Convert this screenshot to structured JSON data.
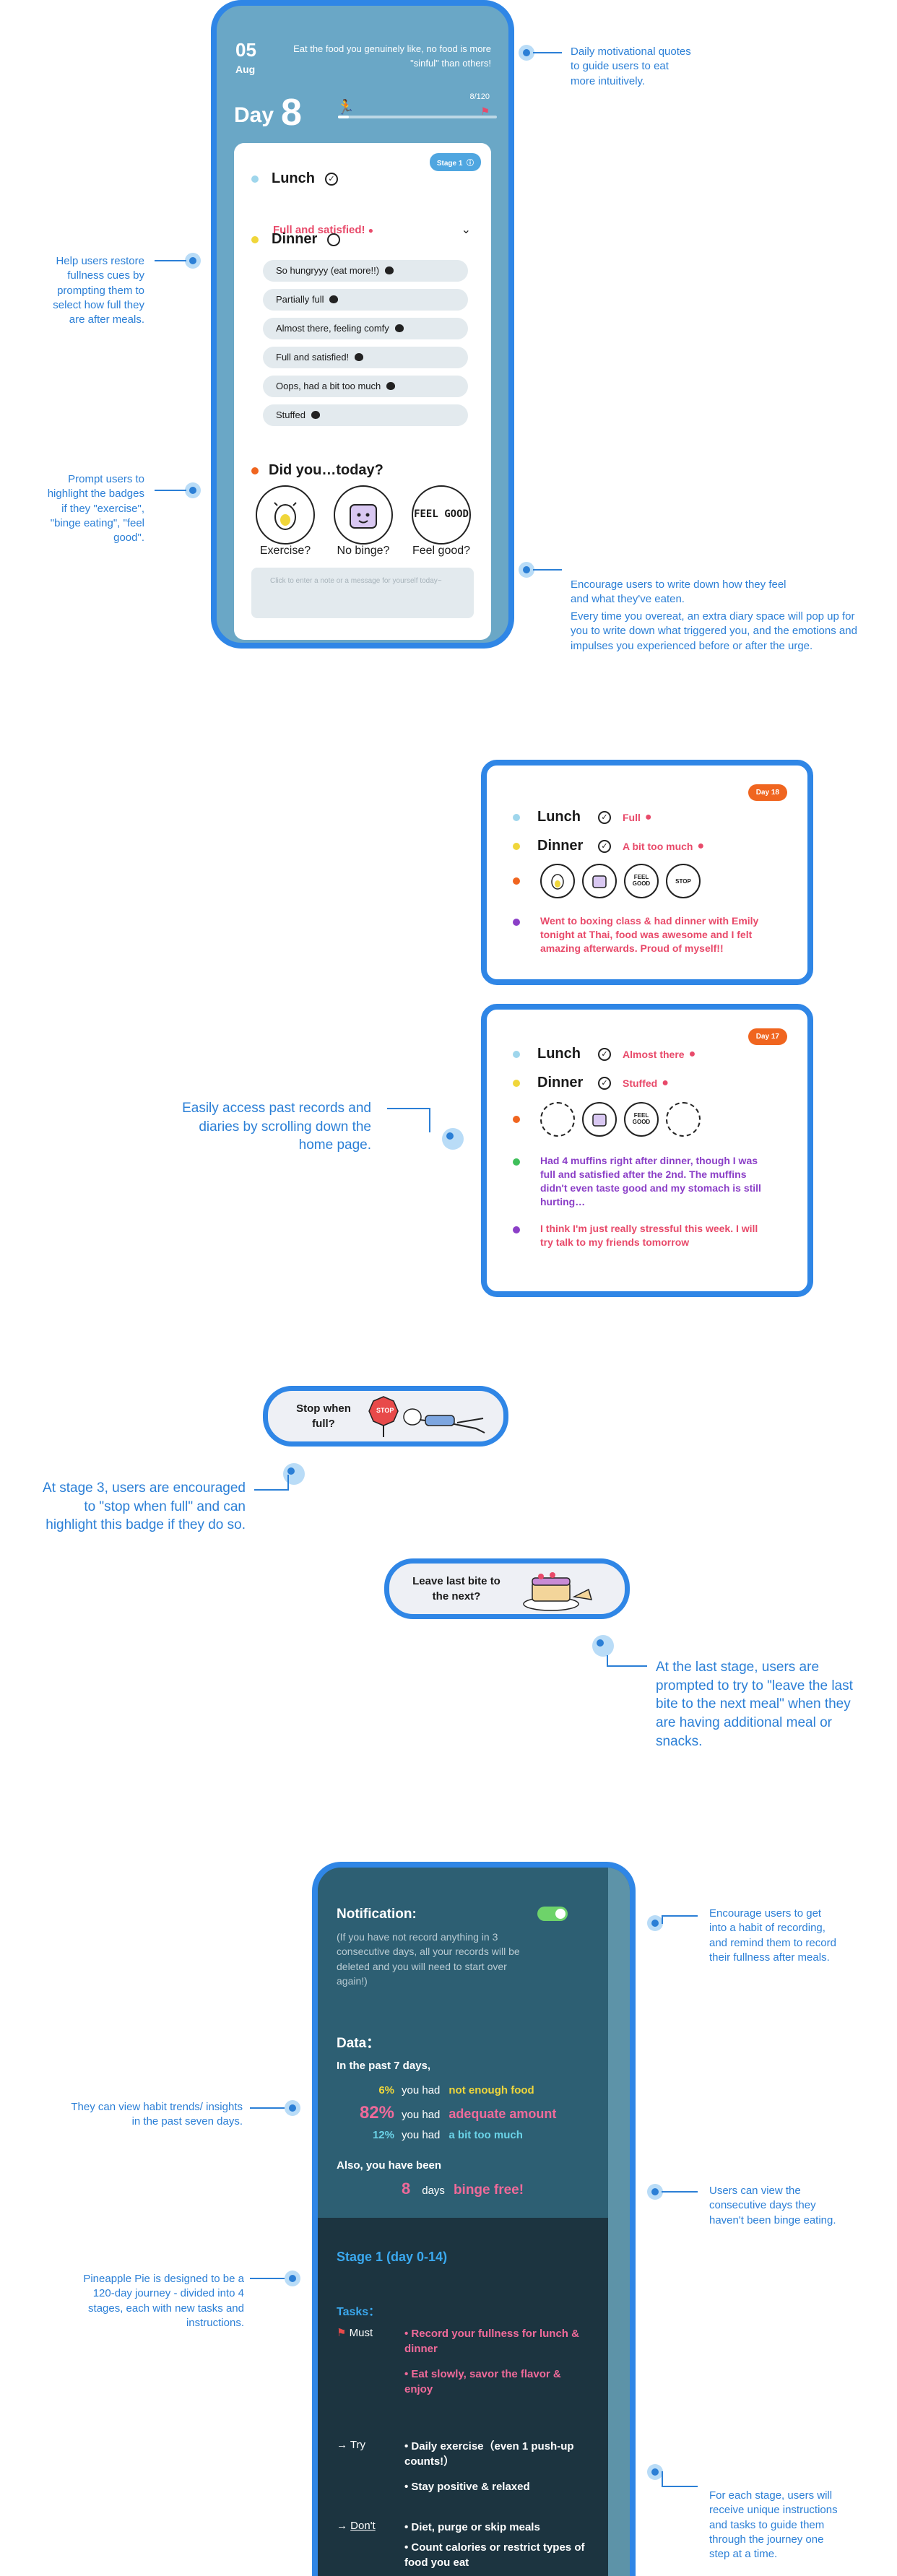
{
  "colors": {
    "accent": "#2f86e6",
    "pink": "#e84a6a",
    "orange": "#f0651f",
    "purple": "#8b3fc7",
    "yellow": "#f0d63a",
    "teal": "#6bd3e8",
    "green": "#6ed36a"
  },
  "annotations": {
    "quote": "Daily motivational quotes to guide users to eat more intuitively.",
    "fullness": "Help users restore fullness cues by prompting them to select how full they are after meals.",
    "badges": "Prompt users to highlight the badges if they \"exercise\", \"binge eating\", \"feel good\".",
    "diary1": "Encourage users to write down how they feel and what they've eaten.",
    "diary2": "Every time you overeat, an extra diary space will pop up for you to write down what triggered you, and the emotions and impulses you experienced before or after the urge.",
    "history": "Easily access past records and diaries  by scrolling down the home page.",
    "stage3": "At stage 3, users are encouraged to \"stop when full\" and can highlight this badge if they do so.",
    "laststage": "At the last stage, users are prompted to try to \"leave the last bite to the next meal\" when they are having additional meal or snacks.",
    "notif": "Encourage users to get into a habit of recording, and remind them to record their fullness after meals.",
    "trends": "They can view habit trends/ insights in the past seven days.",
    "binge": "Users can view the consecutive days they haven't been binge eating.",
    "journey": "Pineapple Pie is designed to be a 120-day journey - divided into 4 stages, each with new tasks and instructions.",
    "stages": "For each stage, users will receive unique instructions and tasks to guide them through the journey one step at a time."
  },
  "home": {
    "date_day": "05",
    "date_month": "Aug",
    "quote": "Eat the food you genuinely like, no food is more \"sinful\" than others!",
    "day_label": "Day",
    "day_num": "8",
    "progress_text": "8/120",
    "progress_fraction": 0.067,
    "stage_pill": "Stage 1",
    "lunch": {
      "name": "Lunch",
      "value": "Full and satisfied!"
    },
    "dinner": {
      "name": "Dinner",
      "options": [
        "So hungryyy (eat more!!)",
        "Partially full",
        "Almost there, feeling comfy",
        "Full and satisfied!",
        "Oops, had a bit too much",
        "Stuffed"
      ]
    },
    "did_title": "Did you…today?",
    "badges": [
      {
        "label": "Exercise?",
        "icon": "exercise-badge-icon"
      },
      {
        "label": "No binge?",
        "icon": "no-binge-badge-icon"
      },
      {
        "label": "Feel good?",
        "icon": "feel-good-badge-icon",
        "art": "FEEL GOOD"
      }
    ],
    "note_placeholder": "Click to enter a note or a message for yourself today~"
  },
  "history": [
    {
      "day": "Day 18",
      "lunch": {
        "name": "Lunch",
        "value": "Full"
      },
      "dinner": {
        "name": "Dinner",
        "value": "A bit too much"
      },
      "badge_art": [
        "FEEL GOOD",
        "STOP"
      ],
      "diary": [
        "Went to boxing class & had dinner with Emily tonight at Thai, food was awesome and I felt amazing afterwards. Proud of myself!!"
      ]
    },
    {
      "day": "Day 17",
      "lunch": {
        "name": "Lunch",
        "value": "Almost there"
      },
      "dinner": {
        "name": "Dinner",
        "value": "Stuffed"
      },
      "badge_art": [
        "FEEL GOOD"
      ],
      "diary": [
        "Had 4 muffins right after dinner, though I was full and satisfied after the 2nd. The muffins didn't even taste good and my stomach is still hurting…",
        "I think I'm just really stressful this week. I will try talk to my friends tomorrow"
      ]
    }
  ],
  "stage_badges": {
    "stop": "Stop when full?",
    "stop_art": "STOP",
    "last_bite": "Leave last bite to the next?"
  },
  "settings": {
    "notification_title": "Notification:",
    "notification_note": "(If you have not record anything in 3 consecutive days, all your records will be deleted and you will need to start over again!)",
    "data_title": "Data：",
    "past7": "In the past 7 days,",
    "stats": [
      {
        "pct": "6%",
        "mid": "you had",
        "hl": "not enough food",
        "color": "#f0d63a"
      },
      {
        "pct": "82%",
        "mid": "you had",
        "hl": "adequate amount",
        "color": "#f06a9a"
      },
      {
        "pct": "12%",
        "mid": "you had",
        "hl": "a bit too much",
        "color": "#6bd3e8"
      }
    ],
    "also": "Also, you have been",
    "binge_days": "8",
    "days_word": "days",
    "binge_free": "binge free!",
    "stage_title": "Stage 1 (day 0-14)",
    "tasks_label": "Tasks：",
    "must_label": "Must",
    "must_items": [
      "• Record your fullness for lunch & dinner",
      "• Eat slowly, savor the flavor & enjoy"
    ],
    "try_label": "→ Try",
    "try_items": [
      "• Daily exercise（even 1 push-up counts!）",
      "• Stay positive & relaxed"
    ],
    "dont_label": "Don't",
    "dont_items": [
      "• Diet, purge or skip meals",
      "• Count calories or restrict types of food you eat"
    ]
  }
}
